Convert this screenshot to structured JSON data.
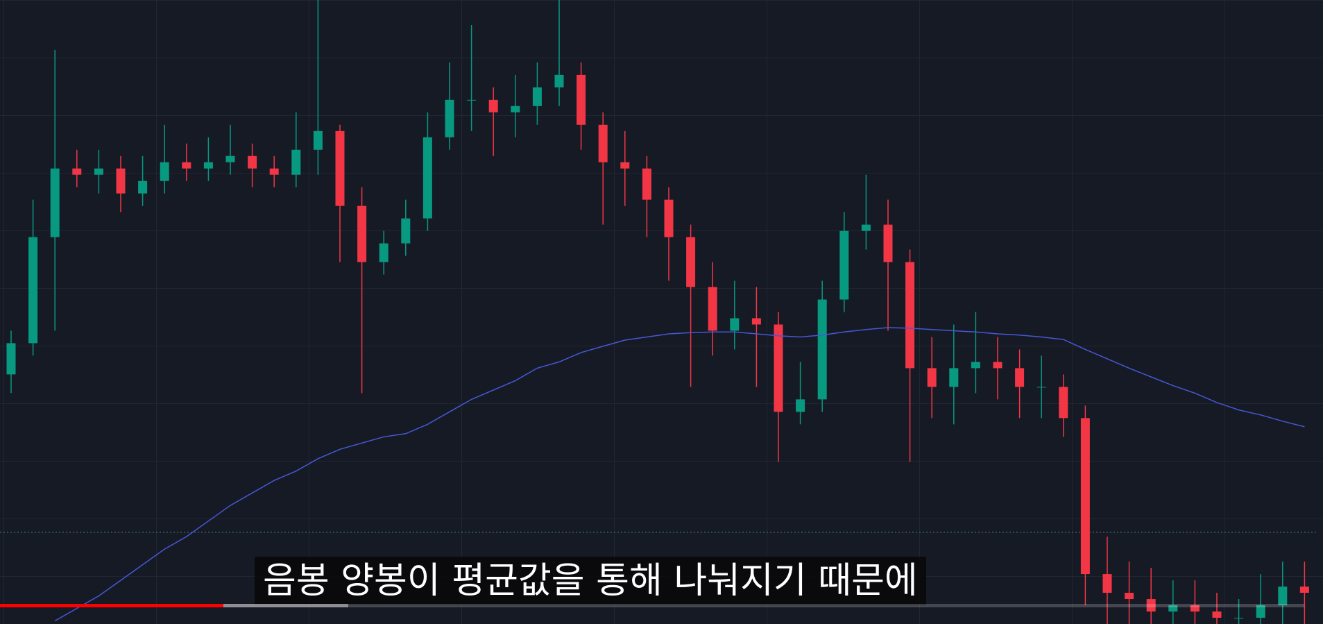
{
  "chart_data": {
    "type": "candlestick",
    "up_color": "#089981",
    "down_color": "#f23645",
    "ma_color": "#4658d6",
    "ylim": [
      0,
      100
    ],
    "open": [
      40,
      45,
      62,
      73,
      72,
      73,
      69,
      71,
      74,
      73,
      74,
      75,
      73,
      72,
      76,
      79,
      67,
      58,
      61,
      65,
      78,
      84,
      84,
      82,
      83,
      86,
      88,
      80,
      74,
      73,
      68,
      62,
      54,
      47,
      49,
      48,
      34,
      36,
      52,
      63,
      64,
      58,
      41,
      38,
      41,
      42,
      41,
      38,
      38,
      33,
      8,
      5,
      4,
      2,
      3,
      2,
      1,
      1,
      3,
      6
    ],
    "high": [
      47,
      68,
      92,
      76,
      76,
      75,
      75,
      80,
      77,
      78,
      80,
      77,
      75,
      82,
      100,
      80,
      70,
      63,
      68,
      82,
      90,
      96,
      86,
      88,
      90,
      100,
      90,
      82,
      79,
      75,
      70,
      64,
      58,
      55,
      54,
      50,
      42,
      55,
      66,
      72,
      68,
      60,
      46,
      48,
      50,
      46,
      44,
      43,
      40,
      35,
      14,
      10,
      9,
      7,
      7,
      5,
      4,
      8,
      10,
      10
    ],
    "low": [
      37,
      43,
      47,
      70,
      69,
      66,
      67,
      69,
      71,
      71,
      72,
      70,
      70,
      70,
      72,
      58,
      37,
      56,
      59,
      63,
      76,
      79,
      75,
      78,
      80,
      83,
      76,
      64,
      67,
      62,
      55,
      38,
      43,
      44,
      38,
      26,
      32,
      34,
      50,
      60,
      47,
      26,
      33,
      32,
      37,
      36,
      33,
      33,
      30,
      3,
      0,
      0,
      0,
      0,
      0,
      0,
      0,
      0,
      0,
      0
    ],
    "close": [
      45,
      62,
      73,
      72,
      73,
      69,
      71,
      74,
      73,
      74,
      75,
      73,
      72,
      76,
      79,
      67,
      58,
      61,
      65,
      78,
      84,
      84,
      82,
      83,
      86,
      88,
      80,
      74,
      73,
      68,
      62,
      54,
      47,
      49,
      48,
      34,
      36,
      52,
      63,
      64,
      58,
      41,
      38,
      41,
      42,
      41,
      38,
      38,
      33,
      8,
      5,
      4,
      2,
      3,
      2,
      1,
      1,
      3,
      6,
      5
    ],
    "ma": [
      null,
      null,
      0.5,
      2.5,
      4.5,
      7,
      9.5,
      12,
      14,
      16.5,
      19,
      21,
      23,
      24.5,
      26.5,
      28,
      29,
      30,
      30.5,
      32,
      34,
      36,
      37.5,
      39,
      41,
      42,
      43.5,
      44.5,
      45.5,
      46,
      46.5,
      46.7,
      46.8,
      46.8,
      46.5,
      46.2,
      46,
      46.3,
      46.8,
      47.2,
      47.5,
      47.4,
      47.2,
      47,
      46.8,
      46.5,
      46.3,
      46,
      45.6,
      44,
      42.5,
      41,
      39.6,
      38.2,
      37,
      35.5,
      34.3,
      33.5,
      32.5,
      31.6
    ],
    "price_line": 14.7
  },
  "subtitle": "음봉 양봉이 평균값을 통해 나눠지기 때문에"
}
